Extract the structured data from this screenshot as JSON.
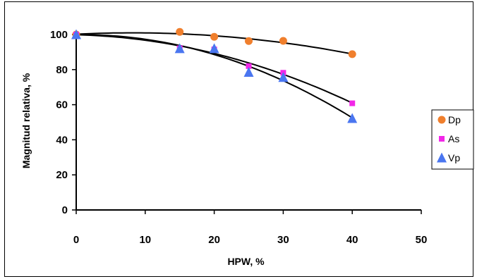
{
  "chart_data": {
    "type": "scatter",
    "title": "",
    "xlabel": "HPW, %",
    "ylabel": "Magnitud relativa, %",
    "xlim": [
      0,
      50
    ],
    "ylim": [
      0,
      100
    ],
    "xticks": [
      0,
      10,
      20,
      30,
      40,
      50
    ],
    "yticks": [
      0,
      20,
      40,
      60,
      80,
      100
    ],
    "xtick_labels": [
      "0",
      "10",
      "20",
      "30",
      "40",
      "50"
    ],
    "ytick_labels": [
      "0",
      "20",
      "40",
      "60",
      "80",
      "100"
    ],
    "grid": false,
    "legend_position": "right",
    "trendlines": "polynomial fit per series",
    "series": [
      {
        "name": "Dp",
        "marker": "circle",
        "color": "#F07F2D",
        "x": [
          0,
          15,
          20,
          25,
          30,
          40
        ],
        "y": [
          100,
          101.5,
          98.7,
          96.3,
          96.4,
          88.8
        ]
      },
      {
        "name": "As",
        "marker": "square",
        "color": "#F227E8",
        "x": [
          0,
          15,
          20,
          25,
          30,
          40
        ],
        "y": [
          100,
          92.2,
          91.5,
          82.0,
          78.2,
          60.8
        ]
      },
      {
        "name": "Vp",
        "marker": "triangle",
        "color": "#4A76F0",
        "x": [
          0,
          15,
          20,
          25,
          30,
          40
        ],
        "y": [
          100,
          92.0,
          92.0,
          78.5,
          75.6,
          52.2
        ]
      }
    ]
  }
}
